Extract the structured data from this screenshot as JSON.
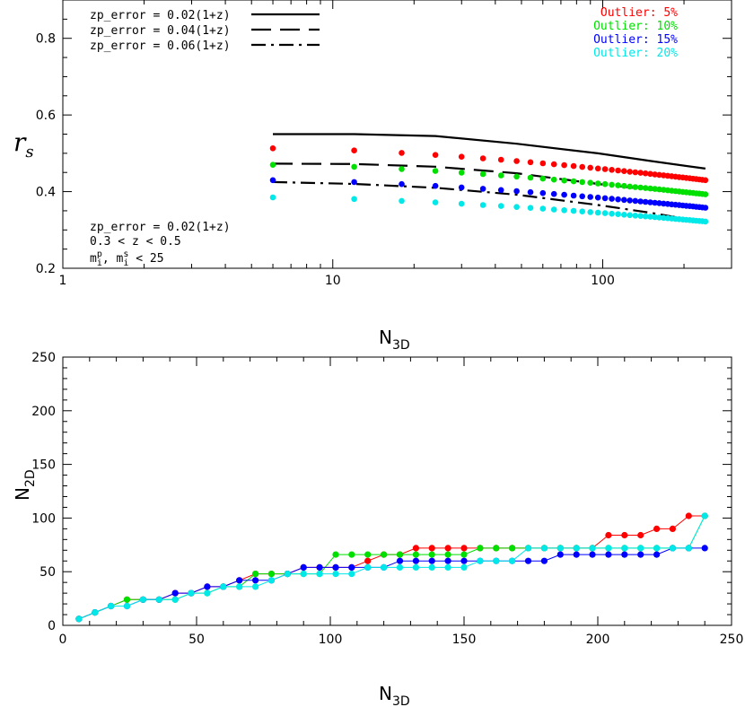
{
  "chart_data": [
    {
      "type": "scatter",
      "xscale": "log",
      "xlim": [
        1,
        300
      ],
      "ylim": [
        0.2,
        0.9
      ],
      "xlabel": "N_3D",
      "ylabel": "r_s",
      "xticks": [
        {
          "v": 1,
          "label": "1"
        },
        {
          "v": 10,
          "label": "10"
        },
        {
          "v": 100,
          "label": "100"
        }
      ],
      "yticks": [
        {
          "v": 0.2,
          "label": "0.2"
        },
        {
          "v": 0.4,
          "label": "0.4"
        },
        {
          "v": 0.6,
          "label": "0.6"
        },
        {
          "v": 0.8,
          "label": "0.8"
        }
      ],
      "line_legend": [
        {
          "label": "zp_error = 0.02(1+z)",
          "style": "solid"
        },
        {
          "label": "zp_error = 0.04(1+z)",
          "style": "dashed"
        },
        {
          "label": "zp_error = 0.06(1+z)",
          "style": "dashdot"
        }
      ],
      "annotation": [
        "zp_error = 0.02(1+z)",
        "0.3 < z < 0.5",
        "m_i^p, m_i^s < 25"
      ],
      "lines": [
        {
          "style": "solid",
          "x": [
            6,
            12,
            24,
            48,
            96,
            150,
            240
          ],
          "y": [
            0.55,
            0.55,
            0.545,
            0.525,
            0.5,
            0.48,
            0.46
          ]
        },
        {
          "style": "dashed",
          "x": [
            6,
            12,
            24,
            48,
            96,
            150,
            240
          ],
          "y": [
            0.473,
            0.472,
            0.465,
            0.448,
            0.42,
            0.405,
            0.39
          ]
        },
        {
          "style": "dashdot",
          "x": [
            6,
            12,
            24,
            48,
            96,
            150,
            240
          ],
          "y": [
            0.425,
            0.42,
            0.41,
            0.392,
            0.365,
            0.345,
            0.32
          ]
        }
      ],
      "series": [
        {
          "name": "Outlier: 5%",
          "color": "#ff0000",
          "y0": 0.513,
          "y1": 0.43
        },
        {
          "name": "Outlier: 10%",
          "color": "#00e000",
          "y0": 0.47,
          "y1": 0.393
        },
        {
          "name": "Outlier: 15%",
          "color": "#0000ff",
          "y0": 0.43,
          "y1": 0.358
        },
        {
          "name": "Outlier: 20%",
          "color": "#00e8e8",
          "y0": 0.385,
          "y1": 0.322
        }
      ],
      "x_points": [
        6,
        12,
        18,
        24,
        30,
        36,
        42,
        48,
        54,
        60,
        66,
        72,
        78,
        84,
        90,
        96,
        102,
        108,
        114,
        120,
        126,
        132,
        138,
        144,
        150,
        156,
        162,
        168,
        174,
        180,
        186,
        192,
        198,
        204,
        210,
        216,
        222,
        228,
        234,
        240
      ]
    },
    {
      "type": "line",
      "xlim": [
        0,
        250
      ],
      "ylim": [
        0,
        250
      ],
      "xlabel": "N_3D",
      "ylabel": "N_2D",
      "xticks": [
        0,
        50,
        100,
        150,
        200,
        250
      ],
      "yticks": [
        0,
        50,
        100,
        150,
        200,
        250
      ],
      "x": [
        6,
        12,
        18,
        24,
        30,
        36,
        42,
        48,
        54,
        60,
        66,
        72,
        78,
        84,
        90,
        96,
        102,
        108,
        114,
        120,
        126,
        132,
        138,
        144,
        150,
        156,
        162,
        168,
        174,
        180,
        186,
        192,
        198,
        204,
        210,
        216,
        222,
        228,
        234,
        240
      ],
      "series": [
        {
          "name": "Outlier: 5%",
          "color": "#ff0000",
          "values": [
            6,
            12,
            18,
            24,
            24,
            24,
            30,
            30,
            36,
            36,
            42,
            48,
            48,
            48,
            54,
            54,
            54,
            54,
            60,
            66,
            66,
            72,
            72,
            72,
            72,
            72,
            72,
            72,
            72,
            72,
            72,
            72,
            72,
            84,
            84,
            84,
            90,
            90,
            102,
            102
          ]
        },
        {
          "name": "Outlier: 10%",
          "color": "#00e000",
          "values": [
            6,
            12,
            18,
            24,
            24,
            24,
            24,
            30,
            30,
            36,
            36,
            48,
            48,
            48,
            48,
            48,
            66,
            66,
            66,
            66,
            66,
            66,
            66,
            66,
            66,
            72,
            72,
            72,
            72,
            72,
            72,
            72,
            72,
            72,
            72,
            72,
            72,
            72,
            72,
            102
          ]
        },
        {
          "name": "Outlier: 15%",
          "color": "#0000ff",
          "values": [
            6,
            12,
            18,
            18,
            24,
            24,
            30,
            30,
            36,
            36,
            42,
            42,
            42,
            48,
            54,
            54,
            54,
            54,
            54,
            54,
            60,
            60,
            60,
            60,
            60,
            60,
            60,
            60,
            60,
            60,
            66,
            66,
            66,
            66,
            66,
            66,
            66,
            72,
            72,
            72
          ]
        },
        {
          "name": "Outlier: 20%",
          "color": "#00e8e8",
          "values": [
            6,
            12,
            18,
            18,
            24,
            24,
            24,
            30,
            30,
            36,
            36,
            36,
            42,
            48,
            48,
            48,
            48,
            48,
            54,
            54,
            54,
            54,
            54,
            54,
            54,
            60,
            60,
            60,
            72,
            72,
            72,
            72,
            72,
            72,
            72,
            72,
            72,
            72,
            72,
            102
          ]
        }
      ]
    }
  ]
}
